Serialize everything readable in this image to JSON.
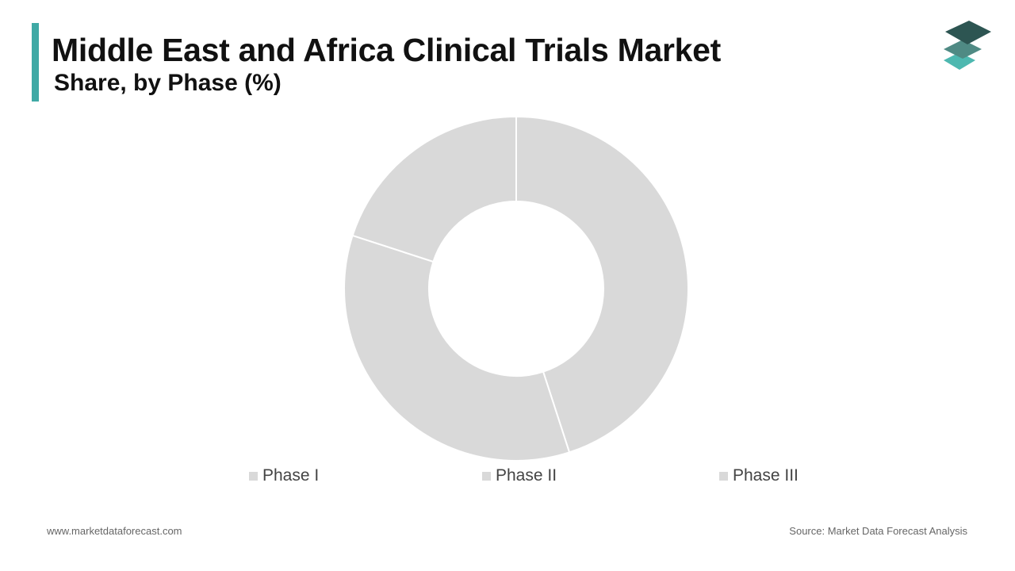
{
  "header": {
    "title": "Middle East and Africa Clinical Trials Market",
    "subtitle": "Share, by Phase (%)"
  },
  "colors": {
    "accent": "#3fa9a5",
    "slice": "#d9d9d9",
    "slice_border": "#ffffff",
    "logo_top": "#2d5552",
    "logo_mid": "#4f8a84",
    "logo_bottom": "#4db8b0"
  },
  "logo": {
    "icon": "stacked-layers-icon"
  },
  "chart_data": {
    "type": "pie",
    "donut": true,
    "title": "",
    "categories": [
      "Phase I",
      "Phase II",
      "Phase III"
    ],
    "values": [
      20,
      35,
      45
    ],
    "legend_position": "bottom"
  },
  "footer": {
    "website": "www.marketdataforecast.com",
    "source": "Source: Market Data Forecast Analysis"
  }
}
